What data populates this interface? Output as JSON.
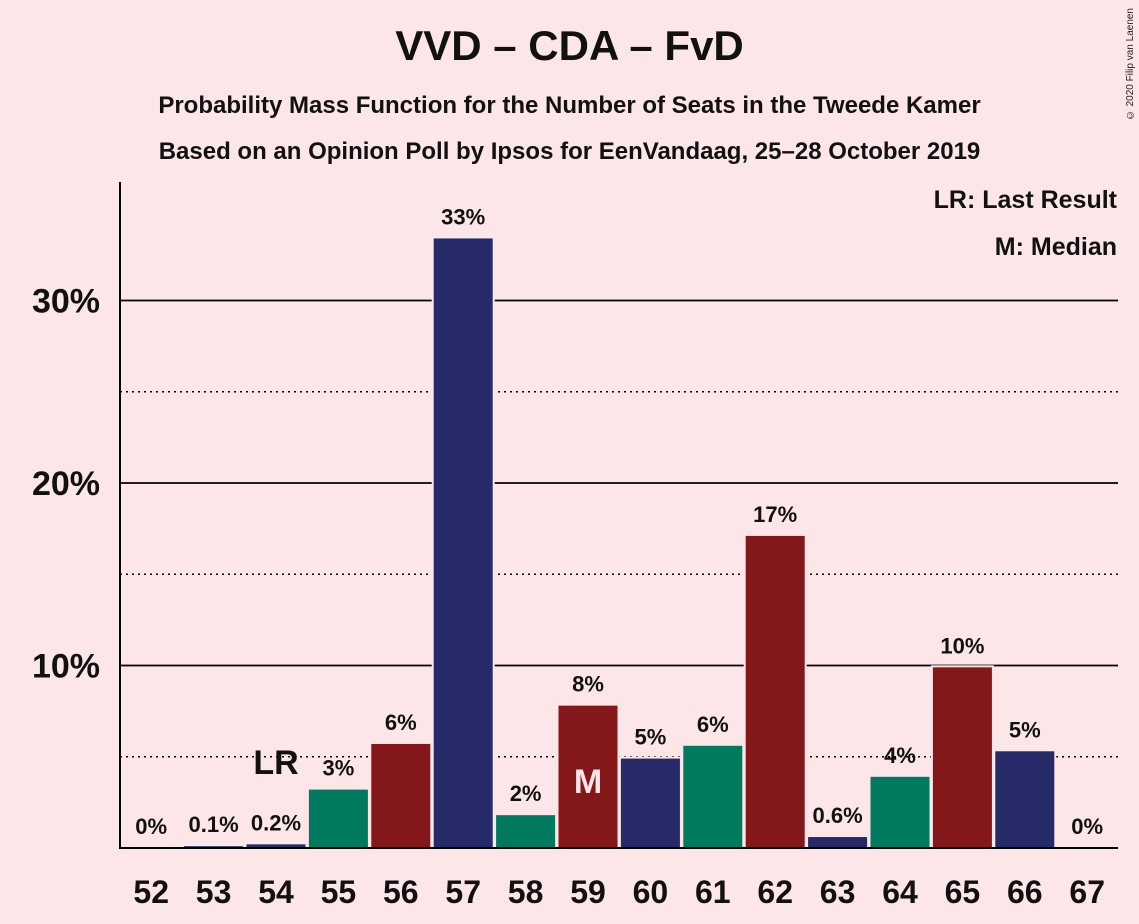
{
  "title": "VVD – CDA – FvD",
  "subtitle_1": "Probability Mass Function for the Number of Seats in the Tweede Kamer",
  "subtitle_2": "Based on an Opinion Poll by Ipsos for EenVandaag, 25–28 October 2019",
  "copyright": "© 2020 Filip van Laenen",
  "legend": {
    "last_result": "LR: Last Result",
    "median": "M: Median"
  },
  "colors": {
    "navy": "#262a68",
    "red": "#841719",
    "green": "#007a5e",
    "background": "#fce6e8"
  },
  "chart_data": {
    "type": "bar",
    "categories": [
      "52",
      "53",
      "54",
      "55",
      "56",
      "57",
      "58",
      "59",
      "60",
      "61",
      "62",
      "63",
      "64",
      "65",
      "66",
      "67"
    ],
    "values": [
      0,
      0.1,
      0.2,
      3.2,
      5.7,
      33.4,
      1.8,
      7.8,
      4.9,
      5.6,
      17.1,
      0.6,
      3.9,
      9.9,
      5.3,
      0
    ],
    "labels": [
      "0%",
      "0.1%",
      "0.2%",
      "3%",
      "6%",
      "33%",
      "2%",
      "8%",
      "5%",
      "6%",
      "17%",
      "0.6%",
      "4%",
      "10%",
      "5%",
      "0%"
    ],
    "bar_colors": [
      "navy",
      "navy",
      "navy",
      "green",
      "red",
      "navy",
      "green",
      "red",
      "navy",
      "green",
      "red",
      "navy",
      "green",
      "red",
      "navy",
      "navy"
    ],
    "y_ticks": [
      "10%",
      "20%",
      "30%"
    ],
    "y_tick_values": [
      10,
      20,
      30
    ],
    "ylim": [
      0,
      36.5
    ],
    "last_result_label": "LR",
    "last_result_seat": "54",
    "median_label": "M",
    "median_seat": "59",
    "grid": "solid at 10% steps, dotted at 5% steps",
    "legend_position": "top-right"
  }
}
